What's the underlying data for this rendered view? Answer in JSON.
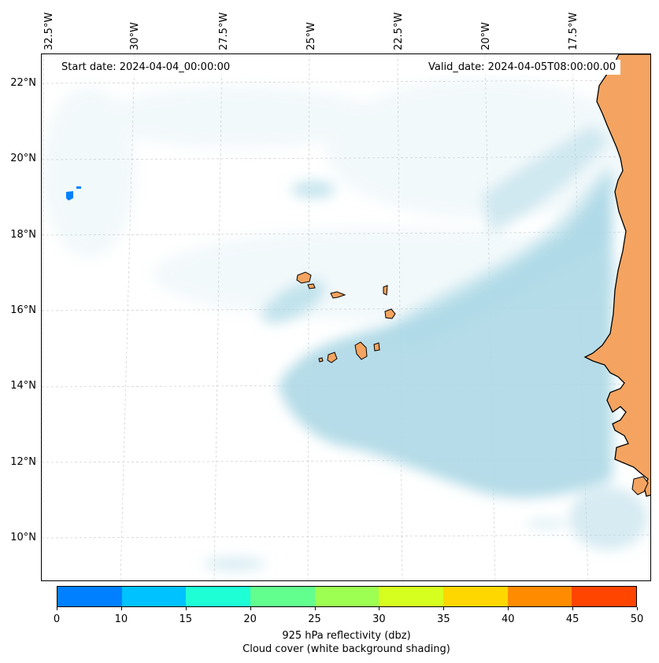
{
  "map": {
    "start_date": "Start date: 2024-04-04_00:00:00",
    "valid_date": "Valid_date: 2024-04-05T08:00:00.00",
    "lon_labels": [
      "32.5°W",
      "30°W",
      "27.5°W",
      "25°W",
      "22.5°W",
      "20°W",
      "17.5°W"
    ],
    "lat_labels": [
      "22°N",
      "20°N",
      "18°N",
      "16°N",
      "14°N",
      "12°N",
      "10°N"
    ],
    "land_color": "#f4a460",
    "cloud_color": "#add8e6",
    "reflectivity_color": "#0080ff"
  },
  "colorbar": {
    "ticks": [
      "0",
      "10",
      "15",
      "20",
      "25",
      "30",
      "35",
      "40",
      "45",
      "50"
    ],
    "colors": [
      "#0080ff",
      "#00c2ff",
      "#1fffd6",
      "#62ff8e",
      "#9dff52",
      "#d6ff1f",
      "#ffd700",
      "#ff8c00",
      "#ff4500"
    ],
    "label": "925 hPa reflectivity (dbz)",
    "sublabel": "Cloud cover (white background shading)"
  }
}
